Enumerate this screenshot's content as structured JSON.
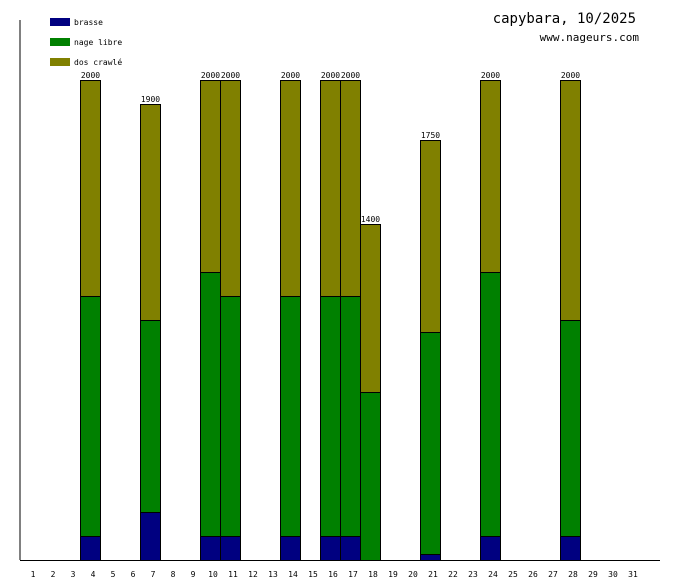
{
  "chart_data": {
    "type": "bar",
    "stacked": true,
    "title": "capybara, 10/2025",
    "subtitle": "www.nageurs.com",
    "categories": [
      "1",
      "2",
      "3",
      "4",
      "5",
      "6",
      "7",
      "8",
      "9",
      "10",
      "11",
      "12",
      "13",
      "14",
      "15",
      "16",
      "17",
      "18",
      "19",
      "20",
      "21",
      "22",
      "23",
      "24",
      "25",
      "26",
      "27",
      "28",
      "29",
      "30",
      "31"
    ],
    "series": [
      {
        "name": "brasse",
        "color": "#000080",
        "values": [
          0,
          0,
          0,
          100,
          0,
          0,
          200,
          0,
          0,
          100,
          100,
          0,
          0,
          100,
          0,
          100,
          100,
          0,
          0,
          0,
          25,
          0,
          0,
          100,
          0,
          0,
          0,
          100,
          0,
          0,
          0
        ]
      },
      {
        "name": "nage libre",
        "color": "#008000",
        "values": [
          0,
          0,
          0,
          1000,
          0,
          0,
          800,
          0,
          0,
          1100,
          1000,
          0,
          0,
          1000,
          0,
          1000,
          1000,
          700,
          0,
          0,
          925,
          0,
          0,
          1100,
          0,
          0,
          0,
          900,
          0,
          0,
          0
        ]
      },
      {
        "name": "dos crawlé",
        "color": "#808000",
        "values": [
          0,
          0,
          0,
          900,
          0,
          0,
          900,
          0,
          0,
          800,
          900,
          0,
          0,
          900,
          0,
          900,
          900,
          700,
          0,
          0,
          800,
          0,
          0,
          800,
          0,
          0,
          0,
          1000,
          0,
          0,
          0
        ]
      }
    ],
    "totals": [
      0,
      0,
      0,
      2000,
      0,
      0,
      1900,
      0,
      0,
      2000,
      2000,
      0,
      0,
      2000,
      0,
      2000,
      2000,
      1400,
      0,
      0,
      1750,
      0,
      0,
      2000,
      0,
      0,
      0,
      2000,
      0,
      0,
      0
    ],
    "ylim": [
      0,
      2000
    ],
    "legend": "top-left",
    "grid": false
  }
}
